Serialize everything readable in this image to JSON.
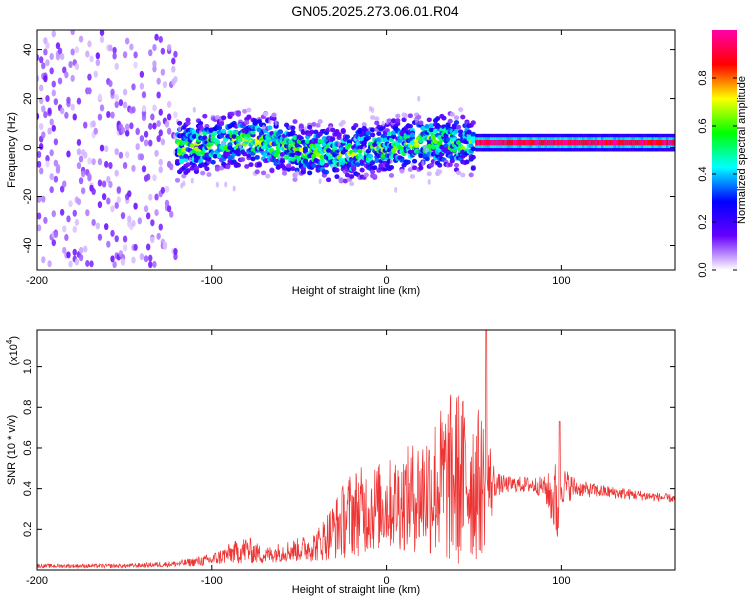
{
  "title": "GN05.2025.273.06.01.R04",
  "chart_data": [
    {
      "type": "heatmap",
      "name": "spectrogram",
      "xlabel": "Height of straight line (km)",
      "ylabel": "Frequency (Hz)",
      "xlim": [
        -200,
        165
      ],
      "ylim": [
        -50,
        48
      ],
      "x_ticks": [
        -200,
        -100,
        0,
        100
      ],
      "x_tick_labels": [
        "-200",
        "-100",
        "0",
        "100"
      ],
      "y_ticks": [
        -40,
        -20,
        0,
        20,
        40
      ],
      "y_tick_labels": [
        "-40",
        "-20",
        "0",
        "20",
        "40"
      ],
      "colorbar": {
        "label": "Normalized spectral amplitude",
        "range": [
          0,
          1
        ],
        "ticks": [
          0.0,
          0.2,
          0.4,
          0.6,
          0.8
        ],
        "tick_labels": [
          "0.0",
          "0.2",
          "0.4",
          "0.6",
          "0.8"
        ],
        "colormap": [
          "#ffffff",
          "#6600ff",
          "#0000ff",
          "#00ffff",
          "#00ff00",
          "#ffff00",
          "#ff0000",
          "#ff00aa"
        ]
      },
      "regions": [
        {
          "x_range": [
            -200,
            -120
          ],
          "description": "broadband noise",
          "amplitude": 0.08,
          "freq_spread": 48
        },
        {
          "x_range": [
            -120,
            50
          ],
          "description": "signal band",
          "center_freq": 0,
          "half_width": 10,
          "peak_amplitude": 0.7
        },
        {
          "x_range": [
            50,
            165
          ],
          "description": "narrow tone",
          "center_freq": 2,
          "half_width": 2,
          "peak_amplitude": 1.0
        }
      ]
    },
    {
      "type": "line",
      "name": "snr",
      "xlabel": "Height of straight line (km)",
      "ylabel": "SNR (10 * v/v)",
      "y_scale_note": "(x10",
      "y_scale_exp": "4",
      "xlim": [
        -200,
        165
      ],
      "ylim": [
        0,
        1.18
      ],
      "x_ticks": [
        -200,
        -100,
        0,
        100
      ],
      "x_tick_labels": [
        "-200",
        "-100",
        "0",
        "100"
      ],
      "y_ticks": [
        0.2,
        0.4,
        0.6,
        0.8,
        1.0
      ],
      "y_tick_labels": [
        "0.2",
        "0.4",
        "0.6",
        "0.8",
        "1.0"
      ],
      "color": "#ee3333",
      "envelope": {
        "x": [
          -200,
          -150,
          -120,
          -100,
          -90,
          -80,
          -70,
          -60,
          -50,
          -40,
          -30,
          -20,
          -10,
          0,
          10,
          20,
          30,
          40,
          45,
          50,
          55,
          60,
          62,
          70,
          80,
          90,
          95,
          98,
          100,
          110,
          130,
          165
        ],
        "mean": [
          0.02,
          0.02,
          0.03,
          0.05,
          0.08,
          0.1,
          0.07,
          0.09,
          0.1,
          0.12,
          0.2,
          0.28,
          0.3,
          0.32,
          0.34,
          0.38,
          0.42,
          0.45,
          0.45,
          0.43,
          0.42,
          0.42,
          0.42,
          0.42,
          0.42,
          0.41,
          0.35,
          0.33,
          0.42,
          0.4,
          0.38,
          0.35
        ],
        "spread": [
          0.01,
          0.01,
          0.015,
          0.03,
          0.05,
          0.07,
          0.04,
          0.05,
          0.06,
          0.08,
          0.15,
          0.22,
          0.22,
          0.22,
          0.25,
          0.3,
          0.38,
          0.46,
          0.4,
          0.4,
          0.35,
          0.2,
          0.06,
          0.04,
          0.04,
          0.05,
          0.15,
          0.25,
          0.1,
          0.04,
          0.03,
          0.02
        ]
      },
      "peaks": [
        {
          "x": 57,
          "y": 1.18
        },
        {
          "x": 99,
          "y": 0.73
        }
      ]
    }
  ]
}
